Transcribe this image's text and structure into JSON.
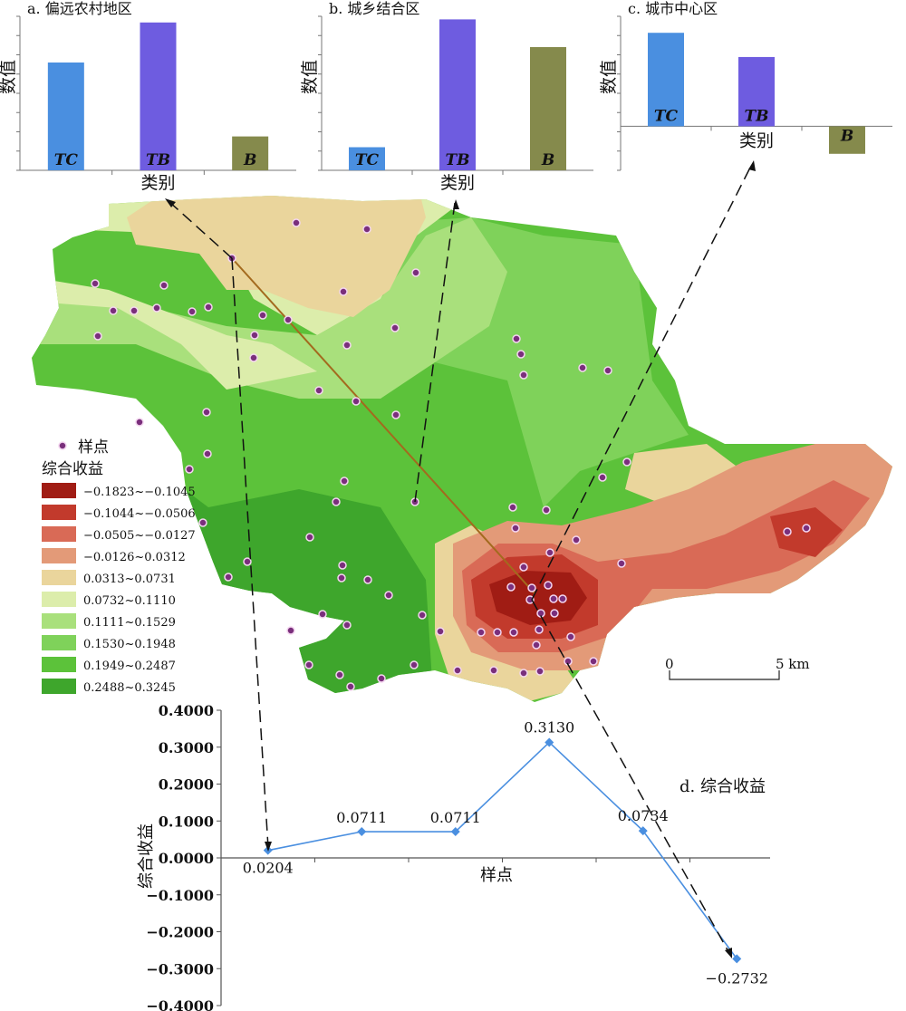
{
  "bar_charts": [
    {
      "title": "a. 偏远农村地区",
      "ylabel": "数值",
      "xlabel": "类别",
      "categories": [
        "TC",
        "TB",
        "B"
      ],
      "values": [
        0.7,
        0.96,
        0.22
      ],
      "ylim": [
        0,
        1
      ],
      "colors": [
        "#4a8fe0",
        "#6e5ce0",
        "#858a4c"
      ]
    },
    {
      "title": "b. 城乡结合区",
      "ylabel": "数值",
      "xlabel": "类别",
      "categories": [
        "TC",
        "TB",
        "B"
      ],
      "values": [
        0.15,
        0.98,
        0.8
      ],
      "ylim": [
        0,
        1
      ],
      "colors": [
        "#4a8fe0",
        "#6e5ce0",
        "#858a4c"
      ]
    },
    {
      "title": "c. 城市中心区",
      "ylabel": "数值",
      "xlabel": "类别",
      "categories": [
        "TC",
        "TB",
        "B"
      ],
      "values": [
        0.85,
        0.63,
        -0.25
      ],
      "ylim": [
        -0.4,
        1
      ],
      "colors": [
        "#4a8fe0",
        "#6e5ce0",
        "#858a4c"
      ]
    }
  ],
  "legend": {
    "point_label": "样点",
    "title": "综合收益",
    "classes": [
      {
        "label": "−0.1823~−0.1045",
        "color": "#a01c14"
      },
      {
        "label": "−0.1044~−0.0506",
        "color": "#c23a2c"
      },
      {
        "label": "−0.0505~−0.0127",
        "color": "#d96a56"
      },
      {
        "label": "−0.0126~0.0312",
        "color": "#e39a78"
      },
      {
        "label": "0.0313~0.0731",
        "color": "#ead59c"
      },
      {
        "label": "0.0732~0.1110",
        "color": "#dcedab"
      },
      {
        "label": "0.1111~0.1529",
        "color": "#a9e07c"
      },
      {
        "label": "0.1530~0.1948",
        "color": "#7fd25a"
      },
      {
        "label": "0.1949~0.2487",
        "color": "#5cc23a"
      },
      {
        "label": "0.2488~0.3245",
        "color": "#3ea62c"
      }
    ]
  },
  "scale_bar": {
    "start": "0",
    "end": "5 km"
  },
  "chart_data": {
    "type": "line",
    "title": "d. 综合收益",
    "xlabel": "样点",
    "ylabel": "综合收益",
    "ylim": [
      -0.4,
      0.4
    ],
    "yticks": [
      "0.4000",
      "0.3000",
      "0.2000",
      "0.1000",
      "0.0000",
      "−0.1000",
      "−0.2000",
      "−0.3000",
      "−0.4000"
    ],
    "values": [
      0.0204,
      0.0711,
      0.0711,
      0.313,
      0.0734,
      -0.2732
    ],
    "labels": [
      "0.0204",
      "0.0711",
      "0.0711",
      "0.3130",
      "0.0734",
      "−0.2732"
    ],
    "color": "#4a8fe0"
  }
}
